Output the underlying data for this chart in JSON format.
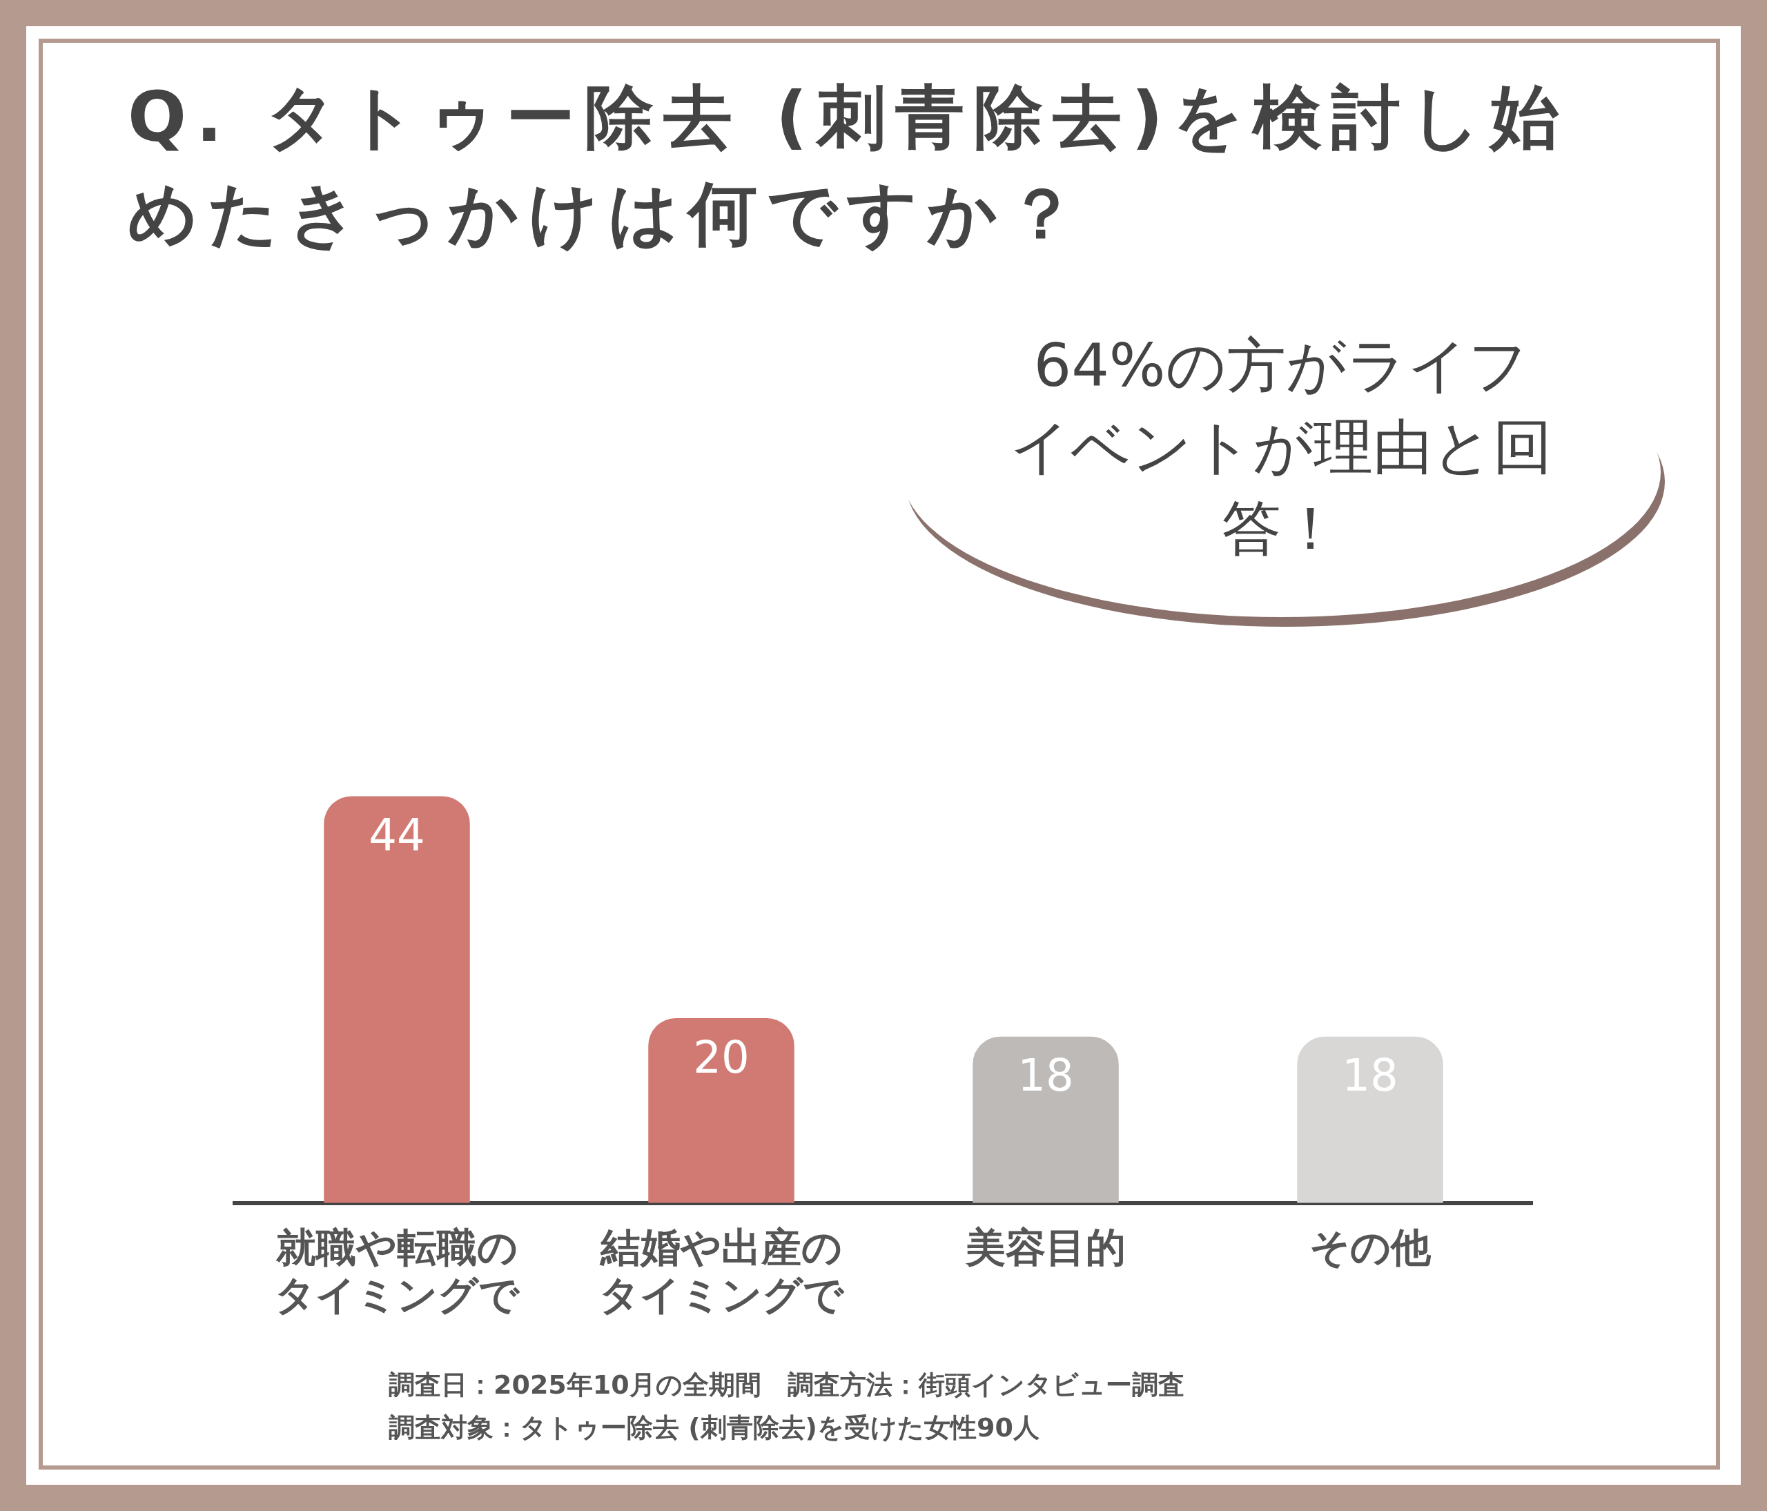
{
  "chart_data": {
    "type": "bar",
    "title": "Q. タトゥー除去 (刺青除去)を検討し始めたきっかけは何ですか？",
    "categories": [
      "就職や転職のタイミングで",
      "結婚や出産のタイミングで",
      "美容目的",
      "その他"
    ],
    "values": [
      44,
      20,
      18,
      18
    ],
    "colors": [
      "#d17a73",
      "#d17a73",
      "#bdbab8",
      "#d9d7d6"
    ],
    "data_labels": true,
    "grid": false,
    "legend": false,
    "annotations": [
      "64%の方がライフイベントが理由と回答！",
      "調査日：2025年10月の全期間　調査方法：街頭インタビュー調査",
      "調査対象：タトゥー除去 (刺青除去)を受けた女性90人"
    ]
  }
}
